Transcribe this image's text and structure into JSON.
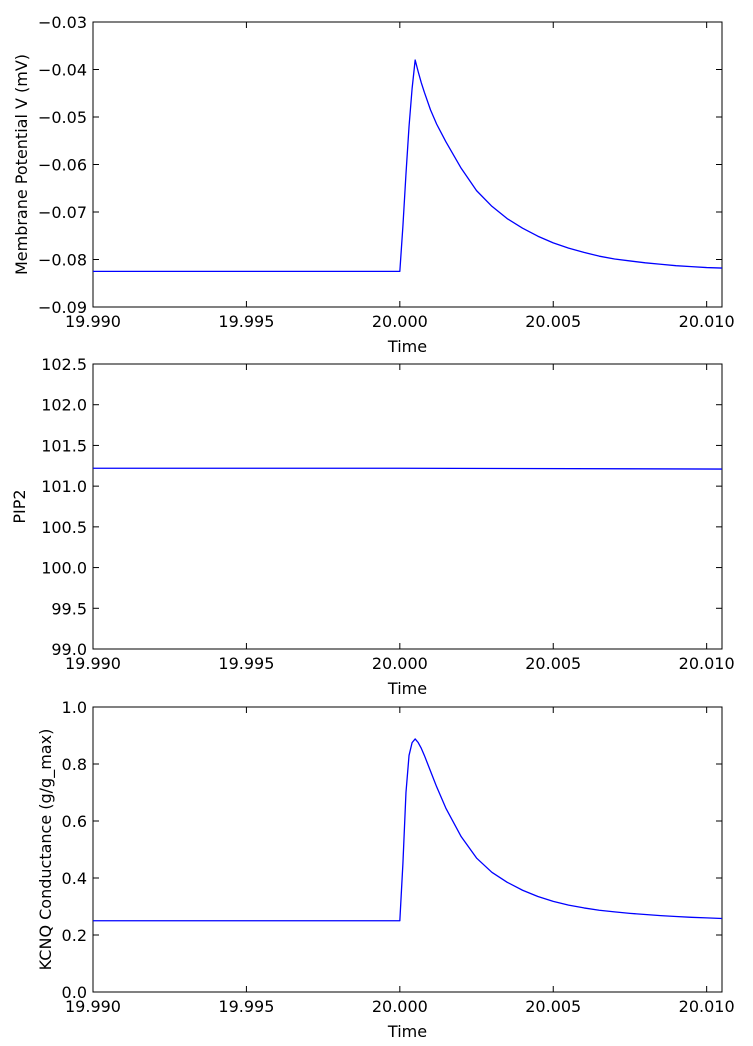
{
  "colors": {
    "line": "#0000ff",
    "axes": "#000000",
    "background": "#ffffff"
  },
  "chart_data": [
    {
      "type": "line",
      "xlabel": "Time",
      "ylabel": "Membrane Potential V (mV)",
      "xlim": [
        19.99,
        20.0105
      ],
      "ylim": [
        -0.09,
        -0.03
      ],
      "xticks": [
        19.99,
        19.995,
        20.0,
        20.005,
        20.01
      ],
      "xtick_labels": [
        "19.990",
        "19.995",
        "20.000",
        "20.005",
        "20.010"
      ],
      "yticks": [
        -0.09,
        -0.08,
        -0.07,
        -0.06,
        -0.05,
        -0.04,
        -0.03
      ],
      "ytick_labels": [
        "−0.09",
        "−0.08",
        "−0.07",
        "−0.06",
        "−0.05",
        "−0.04",
        "−0.03"
      ],
      "grid": false,
      "series": [
        {
          "color": "#0000ff",
          "x": [
            19.99,
            19.995,
            20.0,
            20.0001,
            20.0002,
            20.0003,
            20.0004,
            20.0005,
            20.0006,
            20.0007,
            20.0008,
            20.001,
            20.0012,
            20.0015,
            20.002,
            20.0025,
            20.003,
            20.0035,
            20.004,
            20.0045,
            20.005,
            20.0055,
            20.006,
            20.0065,
            20.007,
            20.0075,
            20.008,
            20.0085,
            20.009,
            20.0095,
            20.01,
            20.0105
          ],
          "y": [
            -0.0825,
            -0.0825,
            -0.0825,
            -0.073,
            -0.062,
            -0.052,
            -0.044,
            -0.038,
            -0.0405,
            -0.0428,
            -0.0448,
            -0.0485,
            -0.0515,
            -0.0552,
            -0.0608,
            -0.0655,
            -0.0688,
            -0.0714,
            -0.0734,
            -0.0751,
            -0.0765,
            -0.0776,
            -0.0785,
            -0.0793,
            -0.0799,
            -0.0803,
            -0.0807,
            -0.081,
            -0.0813,
            -0.0815,
            -0.0817,
            -0.0818
          ]
        }
      ]
    },
    {
      "type": "line",
      "xlabel": "Time",
      "ylabel": "PIP2",
      "xlim": [
        19.99,
        20.0105
      ],
      "ylim": [
        99.0,
        102.5
      ],
      "xticks": [
        19.99,
        19.995,
        20.0,
        20.005,
        20.01
      ],
      "xtick_labels": [
        "19.990",
        "19.995",
        "20.000",
        "20.005",
        "20.010"
      ],
      "yticks": [
        99.0,
        99.5,
        100.0,
        100.5,
        101.0,
        101.5,
        102.0,
        102.5
      ],
      "ytick_labels": [
        "99.0",
        "99.5",
        "100.0",
        "100.5",
        "101.0",
        "101.5",
        "102.0",
        "102.5"
      ],
      "grid": false,
      "series": [
        {
          "color": "#0000ff",
          "x": [
            19.99,
            20.0,
            20.0105
          ],
          "y": [
            101.22,
            101.22,
            101.21
          ]
        }
      ]
    },
    {
      "type": "line",
      "xlabel": "Time",
      "ylabel": "KCNQ Conductance (g/g_max)",
      "xlim": [
        19.99,
        20.0105
      ],
      "ylim": [
        0.0,
        1.0
      ],
      "xticks": [
        19.99,
        19.995,
        20.0,
        20.005,
        20.01
      ],
      "xtick_labels": [
        "19.990",
        "19.995",
        "20.000",
        "20.005",
        "20.010"
      ],
      "yticks": [
        0.0,
        0.2,
        0.4,
        0.6,
        0.8,
        1.0
      ],
      "ytick_labels": [
        "0.0",
        "0.2",
        "0.4",
        "0.6",
        "0.8",
        "1.0"
      ],
      "grid": false,
      "series": [
        {
          "color": "#0000ff",
          "x": [
            19.99,
            19.995,
            20.0,
            20.0001,
            20.0002,
            20.0003,
            20.0004,
            20.0005,
            20.0006,
            20.0007,
            20.0008,
            20.001,
            20.0012,
            20.0015,
            20.002,
            20.0025,
            20.003,
            20.0035,
            20.004,
            20.0045,
            20.005,
            20.0055,
            20.006,
            20.0065,
            20.007,
            20.0075,
            20.008,
            20.0085,
            20.009,
            20.0095,
            20.01,
            20.0105
          ],
          "y": [
            0.25,
            0.25,
            0.25,
            0.45,
            0.7,
            0.83,
            0.875,
            0.888,
            0.875,
            0.855,
            0.83,
            0.775,
            0.72,
            0.645,
            0.545,
            0.47,
            0.42,
            0.385,
            0.357,
            0.335,
            0.318,
            0.305,
            0.295,
            0.287,
            0.281,
            0.276,
            0.272,
            0.268,
            0.265,
            0.262,
            0.26,
            0.258
          ]
        }
      ]
    }
  ]
}
